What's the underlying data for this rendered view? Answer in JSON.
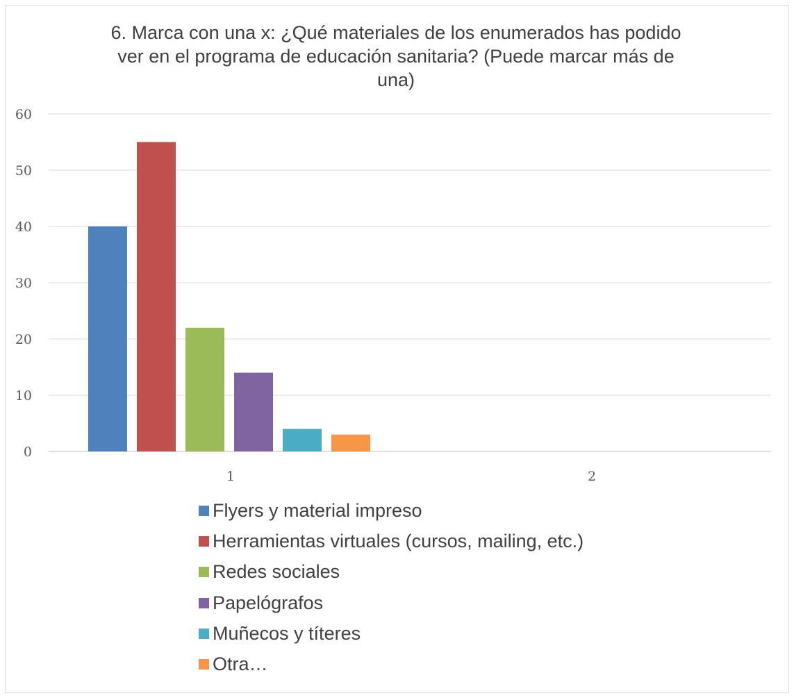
{
  "chart_data": {
    "type": "bar",
    "title": "6. Marca con una x: ¿Qué materiales de los enumerados has podido ver en el programa de educación sanitaria? (Puede marcar más de una)",
    "title_lines": [
      "6. Marca con una x: ¿Qué materiales de los enumerados has podido",
      "ver en el programa de educación sanitaria? (Puede marcar más de",
      "una)"
    ],
    "categories": [
      "1",
      "2"
    ],
    "series": [
      {
        "name": "Flyers y material impreso",
        "color": "#4f81bd",
        "values": [
          40,
          null
        ]
      },
      {
        "name": "Herramientas virtuales (cursos, mailing, etc.)",
        "color": "#c0504d",
        "values": [
          55,
          null
        ]
      },
      {
        "name": "Redes sociales",
        "color": "#9bbb59",
        "values": [
          22,
          null
        ]
      },
      {
        "name": "Papelógrafos",
        "color": "#8064a2",
        "values": [
          14,
          null
        ]
      },
      {
        "name": "Muñecos y títeres",
        "color": "#4bacc6",
        "values": [
          4,
          null
        ]
      },
      {
        "name": "Otra…",
        "color": "#f79646",
        "values": [
          3,
          null
        ]
      }
    ],
    "ylim": [
      0,
      60
    ],
    "yticks": [
      0,
      10,
      20,
      30,
      40,
      50,
      60
    ],
    "grid": true,
    "legend_position": "bottom",
    "xlabel": "",
    "ylabel": ""
  }
}
